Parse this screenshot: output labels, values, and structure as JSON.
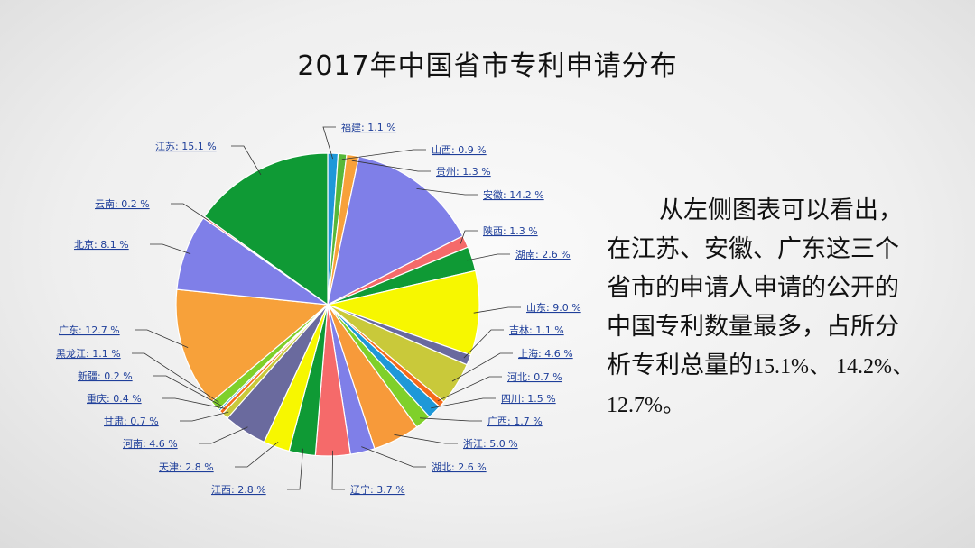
{
  "slide": {
    "title": "2017年中国省市专利申请分布",
    "desc_line1": "从左侧图表可以看出，",
    "desc_line2": "在江苏、安徽、广东这三个",
    "desc_line3": "省市的申请人申请的公开的",
    "desc_line4": "中国专利数量最多，占所分",
    "desc_line5_text": "析专利总量的",
    "desc_line5_num": "15.1%、 14.2%、",
    "desc_line6": "12.7%。"
  },
  "chart_data": {
    "type": "pie",
    "unit": "%",
    "slices": [
      {
        "name": "福建",
        "value": 1.1,
        "color": "#1e98d8"
      },
      {
        "name": "山西",
        "value": 0.9,
        "color": "#57b83a"
      },
      {
        "name": "贵州",
        "value": 1.3,
        "color": "#f7a13a"
      },
      {
        "name": "安徽",
        "value": 14.2,
        "color": "#7f7fe8"
      },
      {
        "name": "陕西",
        "value": 1.3,
        "color": "#f56a6a"
      },
      {
        "name": "湖南",
        "value": 2.6,
        "color": "#0f9a35"
      },
      {
        "name": "山东",
        "value": 9.0,
        "color": "#f7f700"
      },
      {
        "name": "吉林",
        "value": 1.1,
        "color": "#6a6a9e"
      },
      {
        "name": "上海",
        "value": 4.6,
        "color": "#c9c93a"
      },
      {
        "name": "河北",
        "value": 0.7,
        "color": "#f56a1a"
      },
      {
        "name": "四川",
        "value": 1.5,
        "color": "#1e98d8"
      },
      {
        "name": "广西",
        "value": 1.7,
        "color": "#7fd02a"
      },
      {
        "name": "浙江",
        "value": 5.0,
        "color": "#f79a3a"
      },
      {
        "name": "湖北",
        "value": 2.6,
        "color": "#7f7fe8"
      },
      {
        "name": "辽宁",
        "value": 3.7,
        "color": "#f56a6a"
      },
      {
        "name": "江西",
        "value": 2.8,
        "color": "#0f9a35"
      },
      {
        "name": "天津",
        "value": 2.8,
        "color": "#f7f700"
      },
      {
        "name": "河南",
        "value": 4.6,
        "color": "#6a6a9e"
      },
      {
        "name": "甘肃",
        "value": 0.7,
        "color": "#c9c93a"
      },
      {
        "name": "重庆",
        "value": 0.4,
        "color": "#f56a1a"
      },
      {
        "name": "新疆",
        "value": 0.2,
        "color": "#1e98d8"
      },
      {
        "name": "黑龙江",
        "value": 1.1,
        "color": "#7fd02a"
      },
      {
        "name": "广东",
        "value": 12.7,
        "color": "#f7a13a"
      },
      {
        "name": "北京",
        "value": 8.1,
        "color": "#7f7fe8"
      },
      {
        "name": "云南",
        "value": 0.2,
        "color": "#f56a6a"
      },
      {
        "name": "江苏",
        "value": 15.1,
        "color": "#0f9a35"
      }
    ]
  }
}
